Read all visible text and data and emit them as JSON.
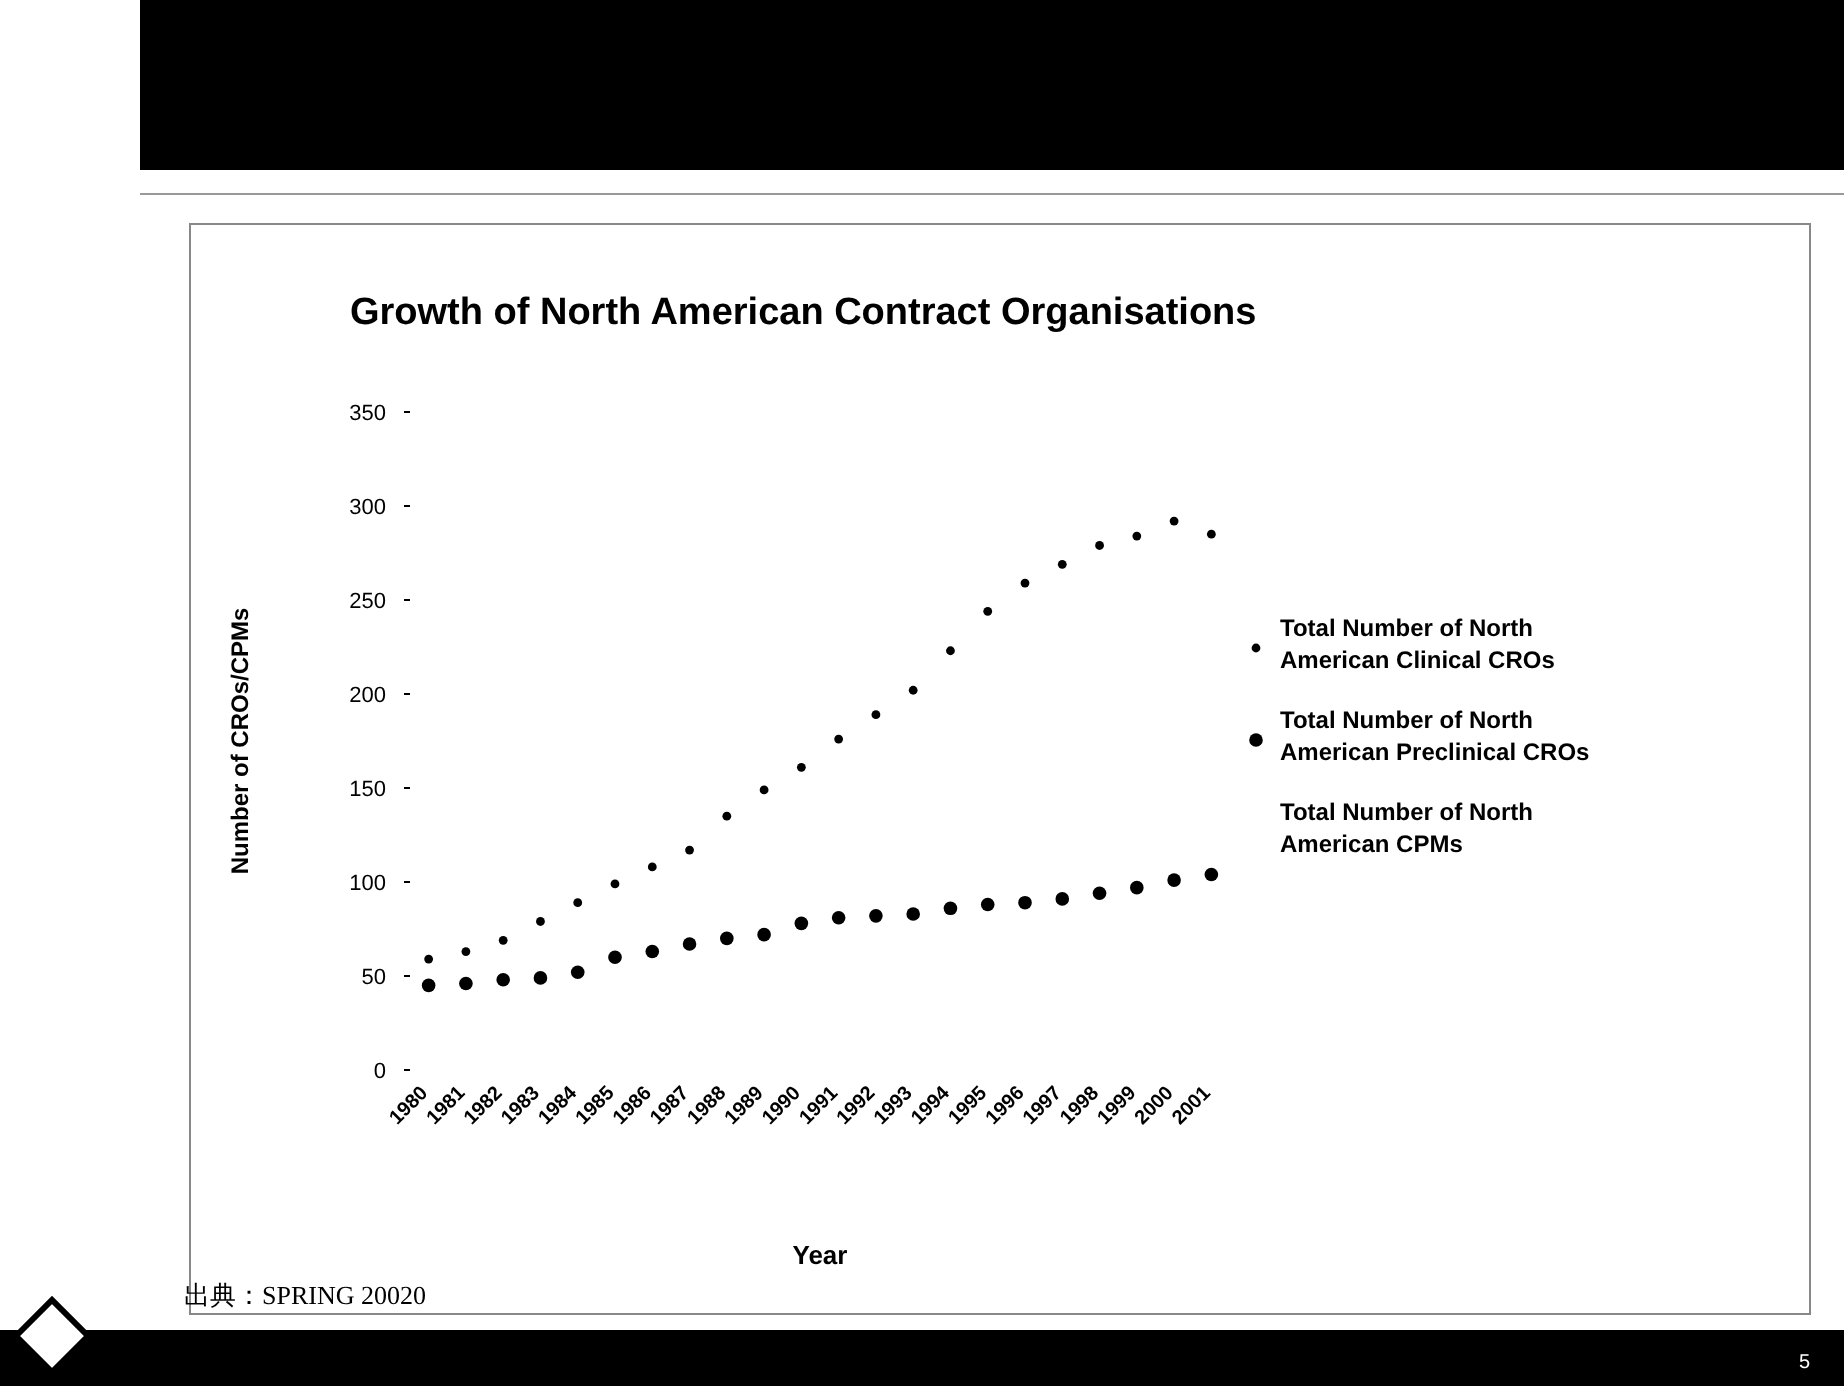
{
  "chart_data": {
    "type": "scatter",
    "title": "Growth of North American Contract Organisations",
    "xlabel": "Year",
    "ylabel": "Number of CROs/CPMs",
    "categories": [
      "1980",
      "1981",
      "1982",
      "1983",
      "1984",
      "1985",
      "1986",
      "1987",
      "1988",
      "1989",
      "1990",
      "1991",
      "1992",
      "1993",
      "1994",
      "1995",
      "1996",
      "1997",
      "1998",
      "1999",
      "2000",
      "2001"
    ],
    "series": [
      {
        "name": "Total Number of North American Clinical CROs",
        "color": "#000000",
        "marker": "circle",
        "values": [
          59,
          63,
          69,
          79,
          89,
          99,
          108,
          117,
          135,
          149,
          161,
          176,
          189,
          202,
          223,
          244,
          259,
          269,
          279,
          284,
          292,
          285
        ]
      },
      {
        "name": "Total Number of North American Preclinical CROs",
        "color": "#000000",
        "marker": "circle",
        "values": [
          45,
          46,
          48,
          49,
          52,
          60,
          63,
          67,
          70,
          72,
          78,
          81,
          82,
          83,
          86,
          88,
          89,
          91,
          94,
          97,
          101,
          104
        ]
      },
      {
        "name": "Total Number of North American CPMs",
        "marker": "none",
        "values": [
          null,
          null,
          null,
          null,
          null,
          null,
          null,
          null,
          null,
          null,
          null,
          null,
          null,
          null,
          null,
          null,
          null,
          null,
          null,
          null,
          null,
          null
        ]
      }
    ],
    "ylim": [
      0,
      350
    ],
    "yticks": [
      0,
      50,
      100,
      150,
      200,
      250,
      300,
      350
    ],
    "grid": false,
    "legend": "right",
    "annotations": [
      "出典：SPRING 20020",
      "5"
    ]
  }
}
